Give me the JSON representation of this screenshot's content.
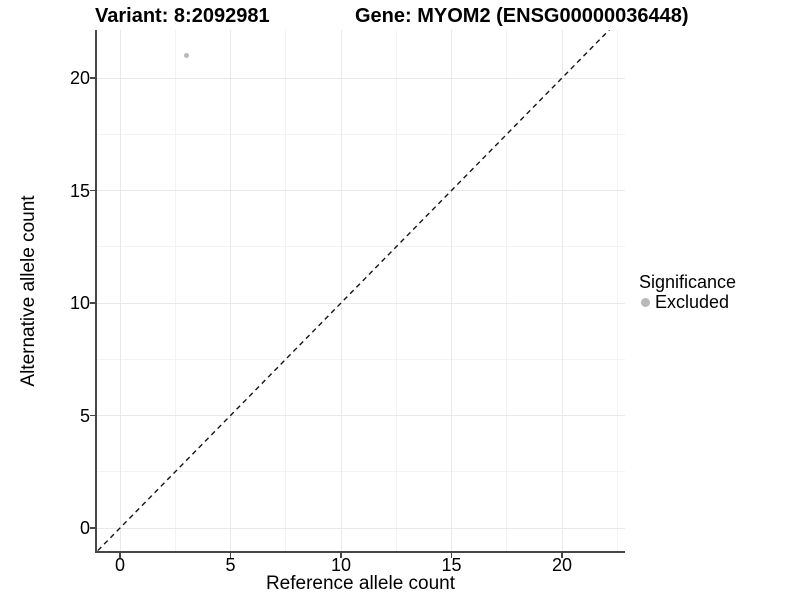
{
  "figure": {
    "title_left": "Variant: 8:2092981",
    "title_right": "Gene: MYOM2 (ENSG00000036448)"
  },
  "chart_data": {
    "type": "scatter",
    "title": "Variant: 8:2092981    Gene: MYOM2 (ENSG00000036448)",
    "xlabel": "Reference allele count",
    "ylabel": "Alternative allele count",
    "x_ticks": [
      0,
      5,
      10,
      15,
      20
    ],
    "y_ticks": [
      0,
      5,
      10,
      15,
      20
    ],
    "xlim": [
      -1.1,
      22.9
    ],
    "ylim": [
      -1.1,
      22.1
    ],
    "grid": "major and minor gridlines on white background",
    "points": [
      {
        "x": 3,
        "y": 21,
        "series": "Excluded"
      }
    ],
    "reference_line": {
      "style": "dashed",
      "slope": 1,
      "intercept": 0
    },
    "legend": {
      "title": "Significance",
      "position": "right",
      "items": [
        {
          "label": "Excluded",
          "color": "#b9b9b9"
        }
      ]
    },
    "colors": {
      "point": "#b9b9b9",
      "axis_line": "#474747",
      "grid_major": "#e9e9e9",
      "grid_minor": "#f3f3f3",
      "dashed_line": "#141414",
      "text": "#000000"
    }
  }
}
